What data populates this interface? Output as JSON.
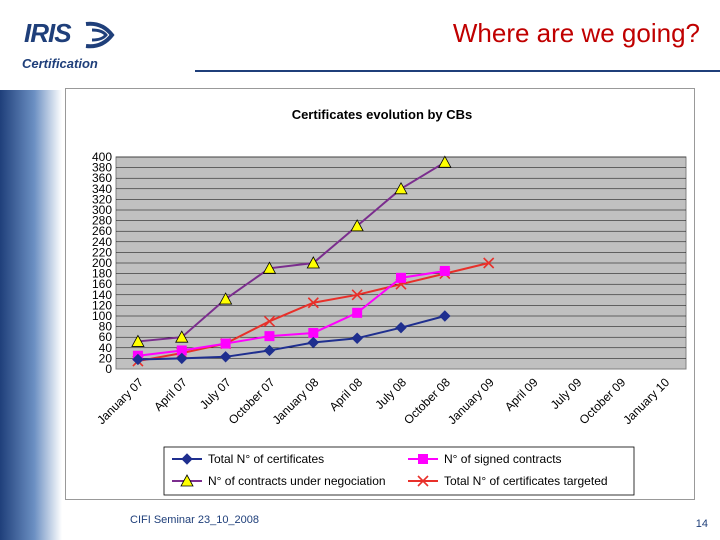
{
  "slide": {
    "title": "Where are we going?",
    "footer": "CIFI Seminar 23_10_2008",
    "page_number": "14"
  },
  "logo": {
    "name": "IRIS",
    "subtitle": "Certification"
  },
  "colors": {
    "title": "#c00000",
    "brand": "#1f3f7a",
    "plot_bg": "#c0c0c0"
  },
  "chart_data": {
    "type": "line",
    "title": "Certificates evolution by CBs",
    "categories": [
      "January 07",
      "April 07",
      "July 07",
      "October 07",
      "January 08",
      "April 08",
      "July 08",
      "October 08",
      "January 09",
      "April 09",
      "July 09",
      "October 09",
      "January 10"
    ],
    "ylim": [
      0,
      400
    ],
    "ytick_step": 20,
    "grid": true,
    "legend": "bottom",
    "series": [
      {
        "name": "Total N° of certificates",
        "color": "#1f2f8f",
        "marker": "diamond",
        "values": [
          18,
          20,
          23,
          35,
          50,
          58,
          78,
          100,
          null,
          null,
          null,
          null,
          null
        ]
      },
      {
        "name": "N° of signed contracts",
        "color": "#ff00ff",
        "marker": "square",
        "values": [
          25,
          35,
          48,
          62,
          68,
          106,
          172,
          185,
          null,
          null,
          null,
          null,
          null
        ]
      },
      {
        "name": "N° of contracts under negociation",
        "color": "#7b2d8e",
        "marker": "triangle",
        "values": [
          52,
          60,
          132,
          190,
          200,
          270,
          340,
          390,
          null,
          null,
          null,
          null,
          null
        ]
      },
      {
        "name": "Total N° of certificates targeted",
        "color": "#e8302a",
        "marker": "x",
        "values": [
          15,
          30,
          48,
          90,
          125,
          140,
          160,
          180,
          200,
          null,
          null,
          null,
          null
        ]
      }
    ]
  }
}
